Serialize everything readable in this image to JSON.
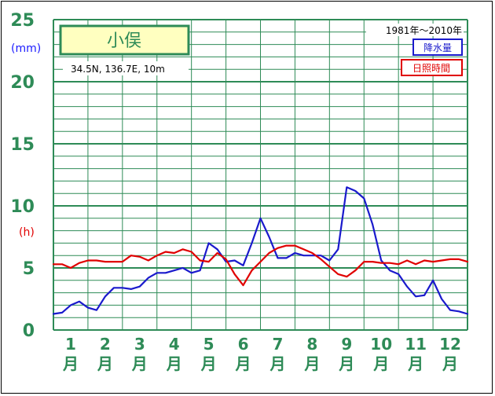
{
  "colors": {
    "grid": "#2e8b57",
    "axis_text": "#2e8b57",
    "precip": "#1a1acc",
    "sunshine": "#e00000",
    "title_box_bg": "#ffffc0"
  },
  "chart_data": {
    "type": "line",
    "title": "小俣",
    "location": "34.5N,  136.7E,  10m",
    "period": "1981年〜2010年",
    "y_unit_left": "(mm)",
    "y_unit_right": "(h)",
    "ylim": [
      0,
      25
    ],
    "yticks": [
      "0",
      "5",
      "10",
      "15",
      "20",
      "25"
    ],
    "grid": true,
    "months": [
      {
        "num": "1",
        "suffix": "月"
      },
      {
        "num": "2",
        "suffix": "月"
      },
      {
        "num": "3",
        "suffix": "月"
      },
      {
        "num": "4",
        "suffix": "月"
      },
      {
        "num": "5",
        "suffix": "月"
      },
      {
        "num": "6",
        "suffix": "月"
      },
      {
        "num": "7",
        "suffix": "月"
      },
      {
        "num": "8",
        "suffix": "月"
      },
      {
        "num": "9",
        "suffix": "月"
      },
      {
        "num": "10",
        "suffix": "月"
      },
      {
        "num": "11",
        "suffix": "月"
      },
      {
        "num": "12",
        "suffix": "月"
      }
    ],
    "x_unit": "month",
    "xlim": [
      0.5,
      12.5
    ],
    "series": [
      {
        "name": "降水量",
        "color": "#1a1acc",
        "x": [
          0.5,
          0.75,
          1.0,
          1.25,
          1.5,
          1.75,
          2.0,
          2.25,
          2.5,
          2.75,
          3.0,
          3.25,
          3.5,
          3.75,
          4.0,
          4.25,
          4.5,
          4.75,
          5.0,
          5.25,
          5.5,
          5.75,
          6.0,
          6.25,
          6.5,
          6.75,
          7.0,
          7.25,
          7.5,
          7.75,
          8.0,
          8.25,
          8.5,
          8.75,
          9.0,
          9.25,
          9.5,
          9.75,
          10.0,
          10.25,
          10.5,
          10.75,
          11.0,
          11.25,
          11.5,
          11.75,
          12.0,
          12.25,
          12.5
        ],
        "values": [
          1.3,
          1.4,
          2.0,
          2.3,
          1.8,
          1.6,
          2.7,
          3.4,
          3.4,
          3.3,
          3.5,
          4.2,
          4.6,
          4.6,
          4.8,
          5.0,
          4.6,
          4.8,
          7.0,
          6.5,
          5.5,
          5.6,
          5.2,
          7.0,
          9.0,
          7.5,
          5.8,
          5.8,
          6.2,
          6.0,
          6.0,
          6.0,
          5.6,
          6.5,
          11.5,
          11.2,
          10.6,
          8.5,
          5.6,
          4.8,
          4.5,
          3.5,
          2.7,
          2.8,
          4.0,
          2.5,
          1.6,
          1.5,
          1.3
        ]
      },
      {
        "name": "日照時間",
        "color": "#e00000",
        "x": [
          0.5,
          0.75,
          1.0,
          1.25,
          1.5,
          1.75,
          2.0,
          2.25,
          2.5,
          2.75,
          3.0,
          3.25,
          3.5,
          3.75,
          4.0,
          4.25,
          4.5,
          4.75,
          5.0,
          5.25,
          5.5,
          5.75,
          6.0,
          6.25,
          6.5,
          6.75,
          7.0,
          7.25,
          7.5,
          7.75,
          8.0,
          8.25,
          8.5,
          8.75,
          9.0,
          9.25,
          9.5,
          9.75,
          10.0,
          10.25,
          10.5,
          10.75,
          11.0,
          11.25,
          11.5,
          11.75,
          12.0,
          12.25,
          12.5
        ],
        "values": [
          5.3,
          5.3,
          5.0,
          5.4,
          5.6,
          5.6,
          5.5,
          5.5,
          5.5,
          6.0,
          5.9,
          5.6,
          6.0,
          6.3,
          6.2,
          6.5,
          6.3,
          5.6,
          5.5,
          6.2,
          5.7,
          4.5,
          3.6,
          4.8,
          5.5,
          6.2,
          6.6,
          6.8,
          6.8,
          6.5,
          6.2,
          5.7,
          5.1,
          4.5,
          4.3,
          4.8,
          5.5,
          5.5,
          5.4,
          5.4,
          5.3,
          5.6,
          5.3,
          5.6,
          5.5,
          5.6,
          5.7,
          5.7,
          5.5
        ]
      }
    ]
  }
}
